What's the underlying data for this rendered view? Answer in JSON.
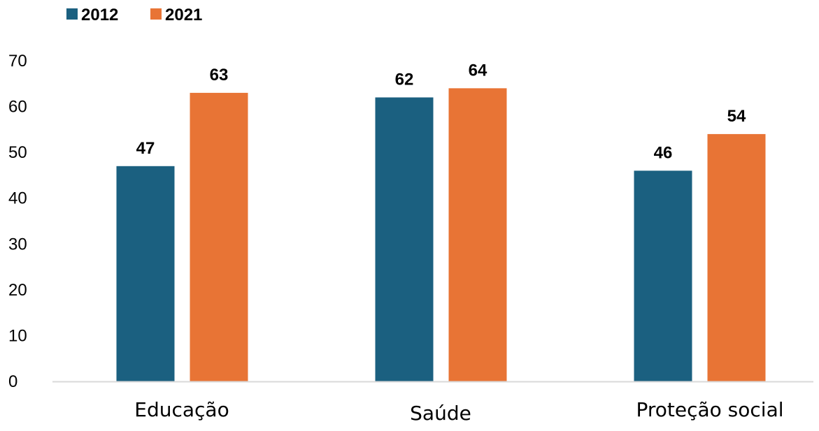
{
  "chart_data": {
    "type": "bar",
    "categories": [
      "Educação",
      "Saúde",
      "Proteção social"
    ],
    "series": [
      {
        "name": "2012",
        "color": "#1b6080",
        "values": [
          47,
          62,
          46
        ]
      },
      {
        "name": "2021",
        "color": "#e87435",
        "values": [
          63,
          64,
          54
        ]
      }
    ],
    "data_labels": [
      [
        "47",
        "62",
        "46"
      ],
      [
        "63",
        "64",
        "54"
      ]
    ],
    "y_ticks": [
      "0",
      "10",
      "20",
      "30",
      "40",
      "50",
      "60",
      "70"
    ],
    "ylim": [
      0,
      70
    ],
    "title": "",
    "xlabel": "",
    "ylabel": "",
    "grid": false,
    "legend_position": "top-left",
    "axis_color": "#d9d9d9"
  }
}
